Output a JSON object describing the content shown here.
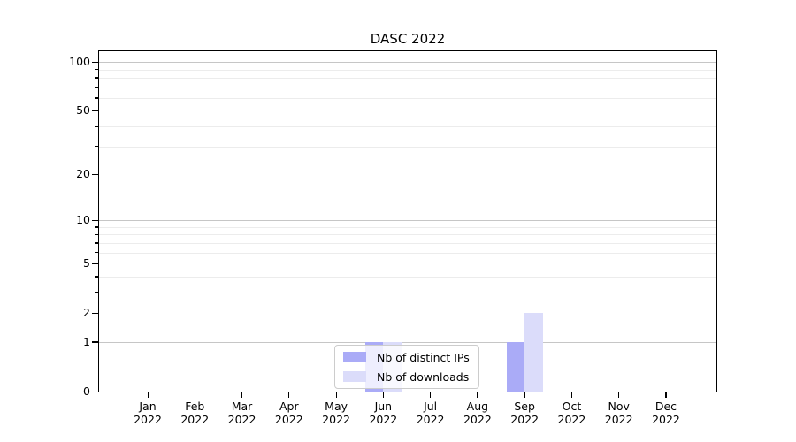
{
  "title": "DASC 2022",
  "colors": {
    "bar_distinct_ips": "#aaabf7",
    "bar_downloads": "#dbdcfa",
    "grid_major": "#c6c6c6",
    "grid_minor": "#ececec",
    "axis": "#000000",
    "legend_border": "#cccccc"
  },
  "legend": {
    "position": "lower center",
    "items": [
      {
        "label": "Nb of distinct IPs",
        "color": "#aaabf7"
      },
      {
        "label": "Nb of downloads",
        "color": "#dbdcfa"
      }
    ]
  },
  "chart_data": {
    "type": "bar",
    "title": "DASC 2022",
    "months": [
      "Jan",
      "Feb",
      "Mar",
      "Apr",
      "May",
      "Jun",
      "Jul",
      "Aug",
      "Sep",
      "Oct",
      "Nov",
      "Dec"
    ],
    "year": "2022",
    "series": [
      {
        "name": "Nb of distinct IPs",
        "color": "#aaabf7",
        "values": [
          0,
          0,
          0,
          0,
          0,
          1,
          0,
          0,
          1,
          0,
          0,
          0
        ]
      },
      {
        "name": "Nb of downloads",
        "color": "#dbdcfa",
        "values": [
          0,
          0,
          0,
          0,
          0,
          1,
          0,
          0,
          2,
          0,
          0,
          0
        ]
      }
    ],
    "xlabel": "",
    "ylabel": "",
    "y_axis": {
      "scale": "log1p",
      "labeled_ticks": [
        0,
        1,
        2,
        5,
        10,
        20,
        50,
        100
      ],
      "major_gridlines": [
        1,
        10,
        100
      ],
      "minor_gridlines": [
        3,
        4,
        6,
        7,
        8,
        9,
        30,
        40,
        60,
        70,
        80,
        90
      ],
      "ylim": [
        0,
        120
      ]
    },
    "grid": true,
    "legend_position": "lower center"
  }
}
